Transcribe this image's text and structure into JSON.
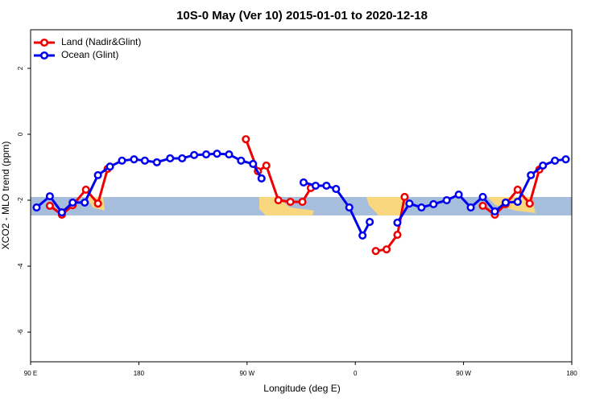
{
  "chart_data": {
    "type": "line",
    "title": "10S-0 May (Ver 10)   2015-01-01 to 2020-12-18",
    "x_label": "Longitude (deg E)",
    "y_label": "XCO2 - MLO trend (ppm)",
    "xlim": [
      90,
      540
    ],
    "ylim": [
      -6.9,
      3.17
    ],
    "xticks": [
      {
        "value": 90,
        "label": "90 E"
      },
      {
        "value": 180,
        "label": "180"
      },
      {
        "value": 270,
        "label": "90 W"
      },
      {
        "value": 360,
        "label": "0"
      },
      {
        "value": 450,
        "label": "90 W"
      },
      {
        "value": 540,
        "label": "180"
      }
    ],
    "yticks": [
      -6,
      -4,
      -2,
      0,
      2
    ],
    "legend": "top-left",
    "series": [
      {
        "name": "Land (Nadir&Glint)",
        "color": "#ee0000",
        "x": [
          106,
          116,
          125,
          136,
          146,
          154,
          null,
          269,
          279,
          286,
          296,
          306,
          316,
          323,
          null,
          377,
          386,
          395,
          401,
          null,
          466,
          476,
          485,
          495,
          505,
          513
        ],
        "values": [
          -2.17,
          -2.44,
          -2.15,
          -1.68,
          -2.1,
          -1.05,
          null,
          -0.15,
          -1.12,
          -0.95,
          -2.0,
          -2.05,
          -2.05,
          -1.63,
          null,
          -3.54,
          -3.49,
          -3.05,
          -1.9,
          null,
          -2.17,
          -2.44,
          -2.12,
          -1.68,
          -2.1,
          -1.07
        ]
      },
      {
        "name": "Ocean (Glint)",
        "color": "#0000ee",
        "x": [
          95,
          106,
          116,
          125,
          135,
          146,
          156,
          166,
          176,
          185,
          195,
          206,
          216,
          226,
          236,
          245,
          255,
          265,
          275,
          282,
          null,
          317,
          327,
          336,
          344,
          355,
          366,
          372,
          null,
          395,
          405,
          415,
          425,
          436,
          446,
          456,
          466,
          476,
          485,
          495,
          506,
          516,
          526,
          535
        ],
        "values": [
          -2.22,
          -1.88,
          -2.37,
          -2.07,
          -2.07,
          -1.24,
          -0.98,
          -0.8,
          -0.76,
          -0.8,
          -0.85,
          -0.73,
          -0.73,
          -0.63,
          -0.61,
          -0.59,
          -0.61,
          -0.8,
          -0.9,
          -1.34,
          null,
          -1.46,
          -1.56,
          -1.56,
          -1.66,
          -2.22,
          -3.07,
          -2.66,
          null,
          -2.68,
          -2.1,
          -2.22,
          -2.12,
          -2.0,
          -1.83,
          -2.22,
          -1.9,
          -2.34,
          -2.07,
          -2.05,
          -1.24,
          -0.95,
          -0.8,
          -0.76
        ]
      }
    ]
  }
}
